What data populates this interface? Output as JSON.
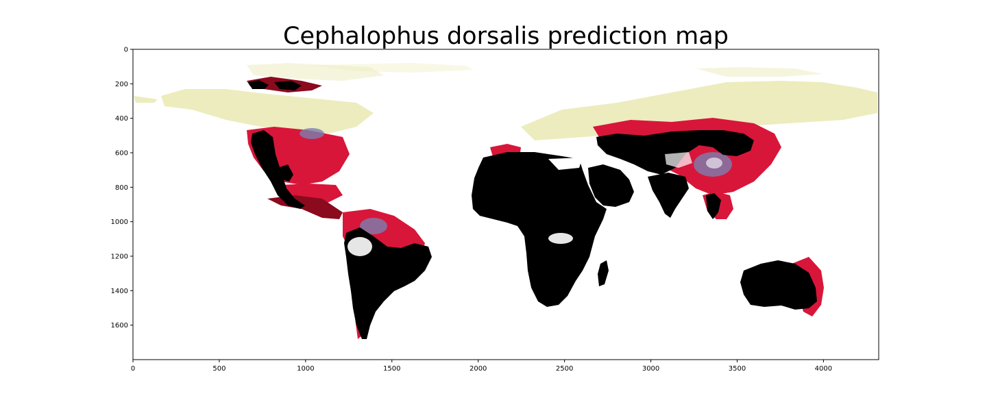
{
  "title": "Cephalophus dorsalis prediction map",
  "chart_data": {
    "type": "heatmap",
    "title": "Cephalophus dorsalis prediction map",
    "xlabel": "",
    "ylabel": "",
    "xlim": [
      0,
      4320
    ],
    "ylim": [
      1800,
      0
    ],
    "x_ticks": [
      0,
      500,
      1000,
      1500,
      2000,
      2500,
      3000,
      3500,
      4000
    ],
    "y_ticks": [
      0,
      200,
      400,
      600,
      800,
      1000,
      1200,
      1400,
      1600
    ],
    "grid": false,
    "colors": {
      "high": "#000000",
      "mid_high": "#8b0a1e",
      "mid": "#e0183c",
      "low_mid": "#7b7fb0",
      "low": "#e6e6a8",
      "none": "#ffffff"
    }
  }
}
